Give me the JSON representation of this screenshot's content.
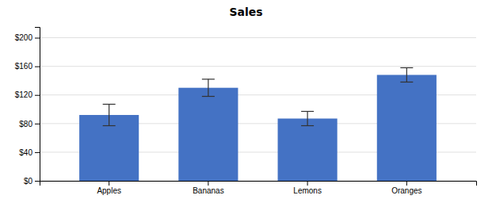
{
  "chart_data": {
    "type": "bar",
    "title": "Sales",
    "categories": [
      "Apples",
      "Bananas",
      "Lemons",
      "Oranges"
    ],
    "values": [
      92,
      130,
      87,
      148
    ],
    "errors": [
      15,
      12,
      10,
      10
    ],
    "color": "#4472C4",
    "ylim": [
      0,
      215
    ],
    "yticks": [
      {
        "value": 0,
        "label": "$0"
      },
      {
        "value": 40,
        "label": "$40"
      },
      {
        "value": 80,
        "label": "$80"
      },
      {
        "value": 120,
        "label": "$120"
      },
      {
        "value": 160,
        "label": "$160"
      },
      {
        "value": 200,
        "label": "$200"
      }
    ],
    "grid": true
  }
}
